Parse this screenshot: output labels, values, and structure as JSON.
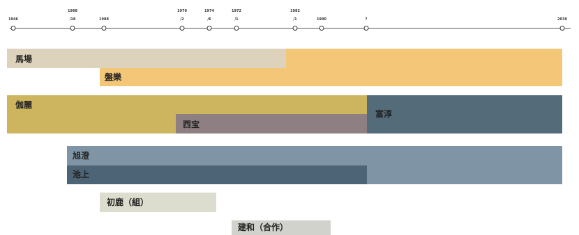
{
  "timeline": {
    "ticks": [
      {
        "top": "",
        "bottom": "1946"
      },
      {
        "top": "1968",
        "bottom": "/18"
      },
      {
        "top": "",
        "bottom": "1988"
      },
      {
        "top": "1970",
        "bottom": "/2"
      },
      {
        "top": "1974",
        "bottom": "/6"
      },
      {
        "top": "1972",
        "bottom": "/1"
      },
      {
        "top": "1982",
        "bottom": "/1"
      },
      {
        "top": "",
        "bottom": "1990"
      },
      {
        "top": "",
        "bottom": "?"
      },
      {
        "top": "",
        "bottom": "2030"
      }
    ]
  },
  "bars": [
    {
      "key": "bar-mabeiru-light",
      "color": "#ddd2bc"
    },
    {
      "key": "bar-mabeiru-right",
      "color": "#f3c678"
    },
    {
      "key": "bar-yellow-second",
      "color": "#f3c678"
    },
    {
      "key": "bar-kasei",
      "color": "#cdb560"
    },
    {
      "key": "bar-kasei-sub",
      "color": "#8e7f82"
    },
    {
      "key": "bar-tomiatsu",
      "color": "#546b7a"
    },
    {
      "key": "bar-ikegami-light",
      "color": "#7f95a5"
    },
    {
      "key": "bar-ikegami-dark",
      "color": "#4d6476"
    },
    {
      "key": "bar-shoji",
      "color": "#ddddcf"
    },
    {
      "key": "bar-kensho",
      "color": "#d2d2cc"
    }
  ],
  "labels": {
    "mabeiru": "馬場",
    "second": "盤樂",
    "kasei": "伽麗",
    "kasei_sub": "西宝",
    "tomiatsu": "富淳",
    "ikegami_top": "旭澄",
    "ikegami_bottom": "池上",
    "shoji": "初鹿（組）",
    "kensho": "建和（合作）"
  }
}
